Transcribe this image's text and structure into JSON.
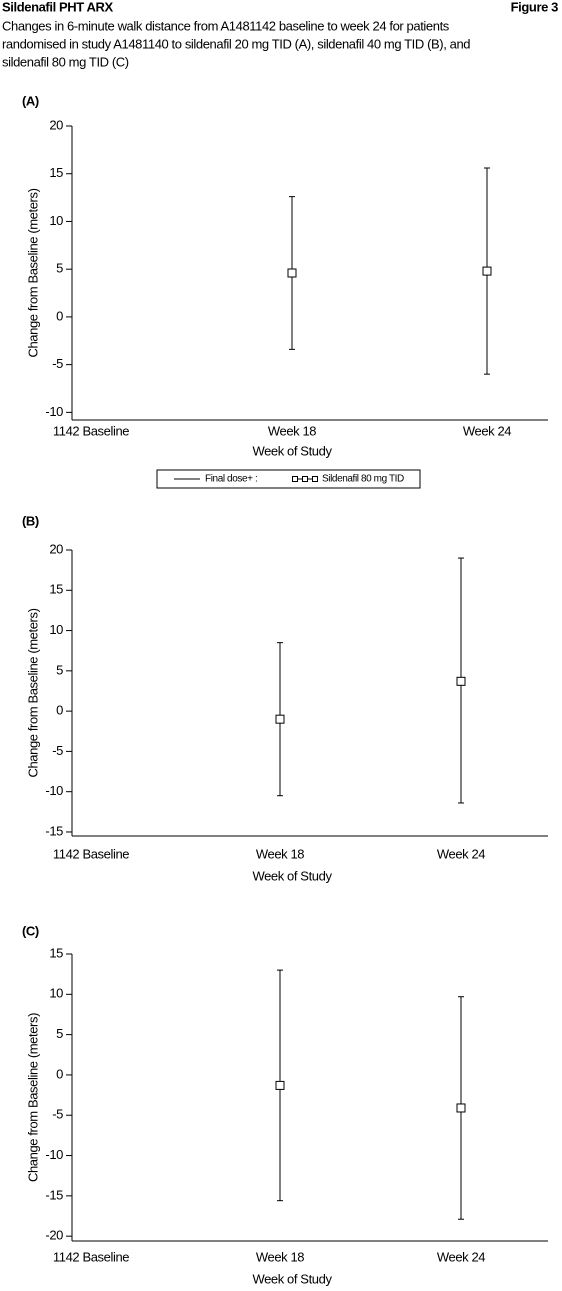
{
  "header": {
    "title": "Sildenafil PHT ARX",
    "figure": "Figure 3",
    "caption_lines": [
      "Changes in 6-minute walk distance from A1481142 baseline to week 24 for patients",
      "randomised in study A1481140 to sildenafil 20 mg TID (A), sildenafil 40 mg TID (B), and",
      "sildenafil 80 mg TID (C)"
    ]
  },
  "chart_data": [
    {
      "type": "errorbar",
      "panel_label": "(A)",
      "ylabel": "Change from Baseline (meters)",
      "xlabel": "Week of Study",
      "categories": [
        "1142 Baseline",
        "Week 18",
        "Week 24"
      ],
      "ylim": [
        -10.8,
        20
      ],
      "yticks": [
        -10,
        -5,
        0,
        5,
        10,
        15,
        20
      ],
      "legend_title": "Final dose+ :",
      "series": [
        {
          "name": "Sildenafil 80 mg TID",
          "color": "#000000",
          "values": [
            null,
            4.6,
            4.8
          ],
          "upper": [
            null,
            12.6,
            15.6
          ],
          "lower": [
            null,
            -3.4,
            -6.0
          ]
        }
      ]
    },
    {
      "type": "errorbar",
      "panel_label": "(B)",
      "ylabel": "Change from Baseline (meters)",
      "xlabel": "Week of Study",
      "categories": [
        "1142 Baseline",
        "Week 18",
        "Week 24"
      ],
      "ylim": [
        -15.5,
        20
      ],
      "yticks": [
        -15,
        -10,
        -5,
        0,
        5,
        10,
        15,
        20
      ],
      "series": [
        {
          "color": "#000000",
          "values": [
            null,
            -1.0,
            3.7
          ],
          "upper": [
            null,
            8.5,
            19.0
          ],
          "lower": [
            null,
            -10.5,
            -11.4
          ]
        }
      ]
    },
    {
      "type": "errorbar",
      "panel_label": "(C)",
      "ylabel": "Change from Baseline (meters)",
      "xlabel": "Week of Study",
      "categories": [
        "1142 Baseline",
        "Week 18",
        "Week 24"
      ],
      "ylim": [
        -20.6,
        15
      ],
      "yticks": [
        -20,
        -15,
        -10,
        -5,
        0,
        5,
        10,
        15
      ],
      "series": [
        {
          "color": "#000000",
          "values": [
            null,
            -1.3,
            -4.1
          ],
          "upper": [
            null,
            13.0,
            9.7
          ],
          "lower": [
            null,
            -15.6,
            -17.9
          ]
        }
      ]
    }
  ]
}
